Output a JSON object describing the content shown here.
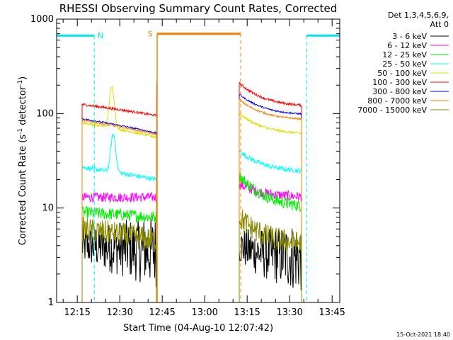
{
  "chart_data": {
    "type": "line",
    "title": "RHESSI Observing Summary Count Rates, Corrected",
    "xlabel": "Start Time (04-Aug-10 12:07:42)",
    "ylabel_main": "Corrected Count Rate (s",
    "ylabel_sup1": "-1",
    "ylabel_mid": " detector",
    "ylabel_sup2": "-1",
    "ylabel_end": ")",
    "yscale": "log",
    "ylim": [
      1,
      1000
    ],
    "xlim_minutes": [
      0,
      100
    ],
    "x_tick_labels": [
      "12:15",
      "12:30",
      "12:45",
      "13:00",
      "13:15",
      "13:30",
      "13:45"
    ],
    "x_tick_minutes": [
      7.3,
      22.3,
      37.3,
      52.3,
      67.3,
      82.3,
      97.3
    ],
    "y_tick_labels": [
      "1",
      "10",
      "100",
      "1000"
    ],
    "y_tick_values": [
      1,
      10,
      100,
      1000
    ],
    "legend_header": [
      "Det 1,3,4,5,6,9,",
      "Att 0"
    ],
    "timestamp": "15-Oct-2021 18:40",
    "flags": {
      "night_label": "N",
      "saa_label": "S",
      "night_color": "#00e5ee",
      "saa_color": "#ff8000",
      "night_intervals": [
        [
          0,
          13.3
        ],
        [
          88.3,
          100
        ]
      ],
      "night_level": 670,
      "saa_intervals": [
        [
          35.5,
          65
        ]
      ],
      "saa_level": 700,
      "night_lines": [
        13.3,
        88.3,
        100
      ],
      "saa_lines": [
        65
      ]
    },
    "gap_interval": [
      35.5,
      63.5
    ],
    "series": [
      {
        "name": "3 - 6 keV",
        "color": "#000000",
        "seg1": [
          4,
          3.5
        ],
        "seg2": [
          4,
          3
        ],
        "noise": 0.45,
        "noisy_low": true
      },
      {
        "name": "6 - 12 keV",
        "color": "#ff00ff",
        "seg1": [
          13,
          13
        ],
        "seg2": [
          18,
          13
        ],
        "noise": 0.12
      },
      {
        "name": "12 - 25 keV",
        "color": "#00ee00",
        "seg1": [
          9,
          8
        ],
        "seg2": [
          22,
          10
        ],
        "noise": 0.15
      },
      {
        "name": "25 - 50 keV",
        "color": "#00ffff",
        "seg1": [
          27,
          20
        ],
        "seg2": [
          40,
          24
        ],
        "noise": 0.06,
        "bump": [
          20,
          60
        ]
      },
      {
        "name": "50 - 100 keV",
        "color": "#dddd00",
        "seg1": [
          80,
          56
        ],
        "seg2": [
          100,
          60
        ],
        "noise": 0.03,
        "bump": [
          19.5,
          190
        ]
      },
      {
        "name": "100 - 300 keV",
        "color": "#ff0000",
        "seg1": [
          125,
          95
        ],
        "seg2": [
          210,
          118
        ],
        "noise": 0.03,
        "end_spike": 220
      },
      {
        "name": "300 - 800 keV",
        "color": "#0000ff",
        "seg1": [
          88,
          62
        ],
        "seg2": [
          160,
          96
        ],
        "noise": 0.02
      },
      {
        "name": "800 - 7000 keV",
        "color": "#ff8000",
        "seg1": [
          85,
          60
        ],
        "seg2": [
          140,
          85
        ],
        "noise": 0.02
      },
      {
        "name": "7000 - 15000 keV",
        "color": "#8b8b00",
        "seg1": [
          6,
          4.5
        ],
        "seg2": [
          8,
          4
        ],
        "noise": 0.3
      }
    ]
  }
}
